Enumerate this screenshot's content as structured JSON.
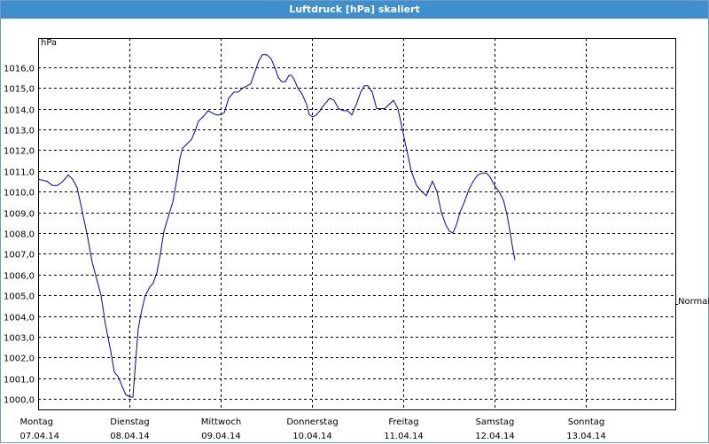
{
  "window": {
    "title": "Luftdruck [hPa] skaliert"
  },
  "chart_data": {
    "type": "line",
    "title": "Luftdruck [hPa] skaliert",
    "ylabel": "hPa",
    "unit": "hPa",
    "ylim": [
      999.5,
      1017.4
    ],
    "yticks": [
      1000.0,
      1001.0,
      1002.0,
      1003.0,
      1004.0,
      1005.0,
      1006.0,
      1007.0,
      1008.0,
      1009.0,
      1010.0,
      1011.0,
      1012.0,
      1013.0,
      1014.0,
      1015.0,
      1016.0
    ],
    "ytick_labels": [
      "1000,0",
      "1001,0",
      "1002,0",
      "1003,0",
      "1004,0",
      "1005,0",
      "1006,0",
      "1007,0",
      "1008,0",
      "1009,0",
      "1010,0",
      "1011,0",
      "1012,0",
      "1013,0",
      "1014,0",
      "1015,0",
      "1016,0"
    ],
    "xlim": [
      0,
      7
    ],
    "days": [
      {
        "day": "Montag",
        "date": "07.04.14"
      },
      {
        "day": "Dienstag",
        "date": "08.04.14"
      },
      {
        "day": "Mittwoch",
        "date": "09.04.14"
      },
      {
        "day": "Donnerstag",
        "date": "10.04.14"
      },
      {
        "day": "Freitag",
        "date": "11.04.14"
      },
      {
        "day": "Samstag",
        "date": "12.04.14"
      },
      {
        "day": "Sonntag",
        "date": "13.04.14"
      }
    ],
    "reference_line": {
      "label": "Normal",
      "value": 1004.6
    },
    "grid": true,
    "series": [
      {
        "color": "#0000aa",
        "points": [
          [
            0.0,
            1010.6
          ],
          [
            0.097,
            1010.5
          ],
          [
            0.155,
            1010.3
          ],
          [
            0.214,
            1010.3
          ],
          [
            0.272,
            1010.5
          ],
          [
            0.33,
            1010.8
          ],
          [
            0.378,
            1010.6
          ],
          [
            0.427,
            1010.2
          ],
          [
            0.476,
            1009.2
          ],
          [
            0.534,
            1008.0
          ],
          [
            0.592,
            1006.6
          ],
          [
            0.641,
            1005.8
          ],
          [
            0.689,
            1005.0
          ],
          [
            0.738,
            1003.6
          ],
          [
            0.796,
            1002.3
          ],
          [
            0.835,
            1001.3
          ],
          [
            0.874,
            1001.1
          ],
          [
            0.922,
            1000.6
          ],
          [
            0.961,
            1000.2
          ],
          [
            1.01,
            1000.1
          ],
          [
            1.039,
            1000.1
          ],
          [
            1.068,
            1001.8
          ],
          [
            1.097,
            1003.4
          ],
          [
            1.136,
            1004.3
          ],
          [
            1.175,
            1005.0
          ],
          [
            1.223,
            1005.4
          ],
          [
            1.262,
            1005.6
          ],
          [
            1.301,
            1006.1
          ],
          [
            1.34,
            1007.0
          ],
          [
            1.379,
            1008.1
          ],
          [
            1.427,
            1008.8
          ],
          [
            1.476,
            1009.5
          ],
          [
            1.524,
            1010.7
          ],
          [
            1.553,
            1011.6
          ],
          [
            1.583,
            1012.1
          ],
          [
            1.631,
            1012.3
          ],
          [
            1.679,
            1012.5
          ],
          [
            1.718,
            1012.9
          ],
          [
            1.757,
            1013.4
          ],
          [
            1.806,
            1013.6
          ],
          [
            1.864,
            1013.9
          ],
          [
            1.903,
            1013.8
          ],
          [
            1.951,
            1013.7
          ],
          [
            1.99,
            1013.7
          ],
          [
            2.039,
            1013.8
          ],
          [
            2.087,
            1014.5
          ],
          [
            2.146,
            1014.8
          ],
          [
            2.194,
            1014.8
          ],
          [
            2.243,
            1015.0
          ],
          [
            2.291,
            1015.1
          ],
          [
            2.33,
            1015.2
          ],
          [
            2.369,
            1015.7
          ],
          [
            2.417,
            1016.3
          ],
          [
            2.456,
            1016.6
          ],
          [
            2.505,
            1016.6
          ],
          [
            2.553,
            1016.4
          ],
          [
            2.592,
            1016.0
          ],
          [
            2.631,
            1015.5
          ],
          [
            2.67,
            1015.3
          ],
          [
            2.709,
            1015.3
          ],
          [
            2.748,
            1015.6
          ],
          [
            2.777,
            1015.6
          ],
          [
            2.806,
            1015.4
          ],
          [
            2.845,
            1015.0
          ],
          [
            2.893,
            1014.7
          ],
          [
            2.942,
            1014.2
          ],
          [
            2.971,
            1013.7
          ],
          [
            3.01,
            1013.6
          ],
          [
            3.049,
            1013.7
          ],
          [
            3.087,
            1013.9
          ],
          [
            3.117,
            1014.1
          ],
          [
            3.155,
            1014.3
          ],
          [
            3.194,
            1014.5
          ],
          [
            3.243,
            1014.4
          ],
          [
            3.291,
            1014.0
          ],
          [
            3.34,
            1013.9
          ],
          [
            3.388,
            1013.9
          ],
          [
            3.437,
            1013.7
          ],
          [
            3.485,
            1014.2
          ],
          [
            3.534,
            1014.8
          ],
          [
            3.573,
            1015.1
          ],
          [
            3.612,
            1015.1
          ],
          [
            3.66,
            1014.8
          ],
          [
            3.709,
            1014.0
          ],
          [
            3.748,
            1014.0
          ],
          [
            3.796,
            1014.0
          ],
          [
            3.845,
            1014.2
          ],
          [
            3.893,
            1014.4
          ],
          [
            3.942,
            1014.0
          ],
          [
            3.99,
            1013.0
          ],
          [
            4.039,
            1012.0
          ],
          [
            4.087,
            1011.0
          ],
          [
            4.146,
            1010.3
          ],
          [
            4.204,
            1010.0
          ],
          [
            4.252,
            1009.8
          ],
          [
            4.291,
            1010.2
          ],
          [
            4.32,
            1010.5
          ],
          [
            4.369,
            1010.0
          ],
          [
            4.417,
            1009.0
          ],
          [
            4.466,
            1008.4
          ],
          [
            4.505,
            1008.1
          ],
          [
            4.544,
            1008.0
          ],
          [
            4.583,
            1008.4
          ],
          [
            4.621,
            1009.0
          ],
          [
            4.67,
            1009.5
          ],
          [
            4.718,
            1010.1
          ],
          [
            4.767,
            1010.5
          ],
          [
            4.816,
            1010.8
          ],
          [
            4.864,
            1010.9
          ],
          [
            4.913,
            1010.9
          ],
          [
            4.951,
            1010.7
          ],
          [
            5.0,
            1010.3
          ],
          [
            5.049,
            1010.0
          ],
          [
            5.097,
            1009.6
          ],
          [
            5.136,
            1008.9
          ],
          [
            5.165,
            1008.2
          ],
          [
            5.194,
            1007.4
          ],
          [
            5.223,
            1006.7
          ]
        ]
      }
    ]
  }
}
